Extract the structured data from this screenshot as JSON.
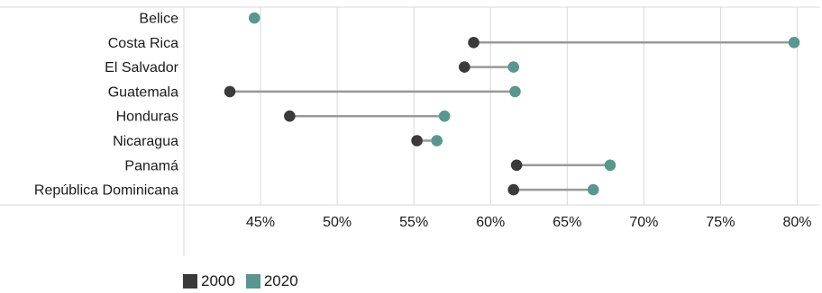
{
  "chart_data": {
    "type": "dumbbell",
    "categories": [
      "Belice",
      "Costa Rica",
      "El Salvador",
      "Guatemala",
      "Honduras",
      "Nicaragua",
      "Panamá",
      "República Dominicana"
    ],
    "series": [
      {
        "name": "2000",
        "color": "#3a3a3a",
        "values": [
          null,
          58.9,
          58.3,
          43.0,
          46.9,
          55.2,
          61.7,
          61.5
        ]
      },
      {
        "name": "2020",
        "color": "#5a9690",
        "values": [
          44.6,
          79.8,
          61.5,
          61.6,
          57.0,
          56.5,
          67.8,
          66.7
        ]
      }
    ],
    "xlim": [
      40,
      81.5
    ],
    "xticks": [
      45,
      50,
      55,
      60,
      65,
      70,
      75,
      80
    ],
    "xtick_labels": [
      "45%",
      "50%",
      "55%",
      "60%",
      "65%",
      "70%",
      "75%",
      "80%"
    ],
    "connector_color": "#999999",
    "gridlines": true,
    "legend_position": "bottom-left"
  }
}
